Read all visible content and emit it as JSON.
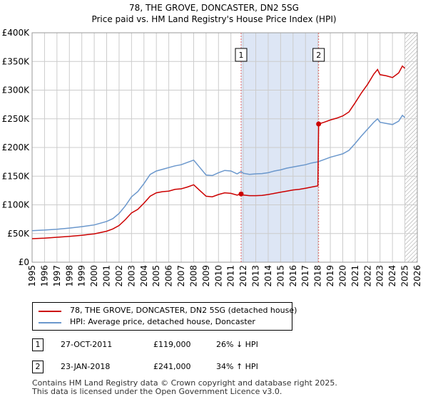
{
  "title_line1": "78, THE GROVE, DONCASTER, DN2 5SG",
  "title_line2": "Price paid vs. HM Land Registry's House Price Index (HPI)",
  "colors": {
    "property": "#cc0000",
    "hpi": "#6a97cc",
    "marker_line": "#e06666",
    "shade": "#dde6f5",
    "grid": "#cccccc"
  },
  "chart_data": {
    "type": "line",
    "ylim": [
      0,
      400000
    ],
    "xlim": [
      1995,
      2026
    ],
    "y_ticks": [
      {
        "value": 0,
        "label": "£0"
      },
      {
        "value": 50000,
        "label": "£50K"
      },
      {
        "value": 100000,
        "label": "£100K"
      },
      {
        "value": 150000,
        "label": "£150K"
      },
      {
        "value": 200000,
        "label": "£200K"
      },
      {
        "value": 250000,
        "label": "£250K"
      },
      {
        "value": 300000,
        "label": "£300K"
      },
      {
        "value": 350000,
        "label": "£350K"
      },
      {
        "value": 400000,
        "label": "£400K"
      }
    ],
    "x_ticks": [
      "1995",
      "1996",
      "1997",
      "1998",
      "1999",
      "2000",
      "2001",
      "2002",
      "2003",
      "2004",
      "2005",
      "2006",
      "2007",
      "2008",
      "2009",
      "2010",
      "2011",
      "2012",
      "2013",
      "2014",
      "2015",
      "2016",
      "2017",
      "2018",
      "2019",
      "2020",
      "2021",
      "2022",
      "2023",
      "2024",
      "2025",
      "2026"
    ],
    "grid": true,
    "shaded_spans": [
      [
        2011.82,
        2018.06
      ]
    ],
    "future_hatch_from": 2025.0,
    "series": [
      {
        "name": "78, THE GROVE, DONCASTER, DN2 5SG (detached house)",
        "color": "#cc0000",
        "points": [
          [
            1995.0,
            41000
          ],
          [
            1996.0,
            42000
          ],
          [
            1997.0,
            43500
          ],
          [
            1998.0,
            45000
          ],
          [
            1999.0,
            47000
          ],
          [
            2000.0,
            49500
          ],
          [
            2001.0,
            54000
          ],
          [
            2001.5,
            58000
          ],
          [
            2002.0,
            64000
          ],
          [
            2002.5,
            74000
          ],
          [
            2003.0,
            86000
          ],
          [
            2003.5,
            92000
          ],
          [
            2004.0,
            103000
          ],
          [
            2004.5,
            115000
          ],
          [
            2005.0,
            121000
          ],
          [
            2005.5,
            123000
          ],
          [
            2006.0,
            124000
          ],
          [
            2006.5,
            127000
          ],
          [
            2007.0,
            128000
          ],
          [
            2007.5,
            131000
          ],
          [
            2008.0,
            135000
          ],
          [
            2008.5,
            125000
          ],
          [
            2009.0,
            115000
          ],
          [
            2009.5,
            114000
          ],
          [
            2010.0,
            118000
          ],
          [
            2010.5,
            121000
          ],
          [
            2011.0,
            120000
          ],
          [
            2011.5,
            117000
          ],
          [
            2011.82,
            119000
          ],
          [
            2012.0,
            117000
          ],
          [
            2012.5,
            116000
          ],
          [
            2013.0,
            116000
          ],
          [
            2013.5,
            116500
          ],
          [
            2014.0,
            118000
          ],
          [
            2014.5,
            120000
          ],
          [
            2015.0,
            122000
          ],
          [
            2015.5,
            124000
          ],
          [
            2016.0,
            126000
          ],
          [
            2016.5,
            127000
          ],
          [
            2017.0,
            129000
          ],
          [
            2017.5,
            131000
          ],
          [
            2018.0,
            133000
          ],
          [
            2018.06,
            241000
          ],
          [
            2018.5,
            244000
          ],
          [
            2019.0,
            248000
          ],
          [
            2019.5,
            251000
          ],
          [
            2020.0,
            255000
          ],
          [
            2020.5,
            262000
          ],
          [
            2021.0,
            278000
          ],
          [
            2021.5,
            295000
          ],
          [
            2022.0,
            310000
          ],
          [
            2022.5,
            328000
          ],
          [
            2022.8,
            336000
          ],
          [
            2023.0,
            327000
          ],
          [
            2023.5,
            325000
          ],
          [
            2024.0,
            322000
          ],
          [
            2024.5,
            330000
          ],
          [
            2024.8,
            342000
          ],
          [
            2025.0,
            338000
          ]
        ]
      },
      {
        "name": "HPI: Average price, detached house, Doncaster",
        "color": "#6a97cc",
        "points": [
          [
            1995.0,
            55000
          ],
          [
            1996.0,
            56000
          ],
          [
            1997.0,
            57500
          ],
          [
            1998.0,
            59500
          ],
          [
            1999.0,
            62000
          ],
          [
            2000.0,
            65000
          ],
          [
            2001.0,
            71000
          ],
          [
            2001.5,
            76000
          ],
          [
            2002.0,
            85000
          ],
          [
            2002.5,
            98000
          ],
          [
            2003.0,
            114000
          ],
          [
            2003.5,
            123000
          ],
          [
            2004.0,
            137000
          ],
          [
            2004.5,
            153000
          ],
          [
            2005.0,
            159000
          ],
          [
            2005.5,
            162000
          ],
          [
            2006.0,
            165000
          ],
          [
            2006.5,
            168000
          ],
          [
            2007.0,
            170000
          ],
          [
            2007.5,
            174000
          ],
          [
            2008.0,
            178000
          ],
          [
            2008.5,
            165000
          ],
          [
            2009.0,
            152000
          ],
          [
            2009.5,
            151000
          ],
          [
            2010.0,
            156000
          ],
          [
            2010.5,
            160000
          ],
          [
            2011.0,
            159000
          ],
          [
            2011.5,
            154000
          ],
          [
            2011.82,
            158000
          ],
          [
            2012.0,
            155000
          ],
          [
            2012.5,
            153000
          ],
          [
            2013.0,
            154000
          ],
          [
            2013.5,
            154500
          ],
          [
            2014.0,
            156000
          ],
          [
            2014.5,
            159000
          ],
          [
            2015.0,
            161000
          ],
          [
            2015.5,
            164000
          ],
          [
            2016.0,
            166000
          ],
          [
            2016.5,
            168000
          ],
          [
            2017.0,
            170000
          ],
          [
            2017.5,
            173000
          ],
          [
            2018.0,
            175000
          ],
          [
            2018.5,
            179000
          ],
          [
            2019.0,
            183000
          ],
          [
            2019.5,
            186000
          ],
          [
            2020.0,
            189000
          ],
          [
            2020.5,
            195000
          ],
          [
            2021.0,
            207000
          ],
          [
            2021.5,
            220000
          ],
          [
            2022.0,
            232000
          ],
          [
            2022.5,
            244000
          ],
          [
            2022.8,
            250000
          ],
          [
            2023.0,
            244000
          ],
          [
            2023.5,
            242000
          ],
          [
            2024.0,
            240000
          ],
          [
            2024.5,
            246000
          ],
          [
            2024.8,
            256000
          ],
          [
            2025.0,
            252000
          ]
        ]
      }
    ],
    "markers": [
      {
        "label": "1",
        "x": 2011.82,
        "y": 119000
      },
      {
        "label": "2",
        "x": 2018.06,
        "y": 241000
      }
    ]
  },
  "legend": {
    "property_label": "78, THE GROVE, DONCASTER, DN2 5SG (detached house)",
    "hpi_label": "HPI: Average price, detached house, Doncaster"
  },
  "transactions": [
    {
      "num": "1",
      "date": "27-OCT-2011",
      "price": "£119,000",
      "hpi": "26% ↓ HPI"
    },
    {
      "num": "2",
      "date": "23-JAN-2018",
      "price": "£241,000",
      "hpi": "34% ↑ HPI"
    }
  ],
  "footer": {
    "line1": "Contains HM Land Registry data © Crown copyright and database right 2025.",
    "line2": "This data is licensed under the Open Government Licence v3.0."
  }
}
